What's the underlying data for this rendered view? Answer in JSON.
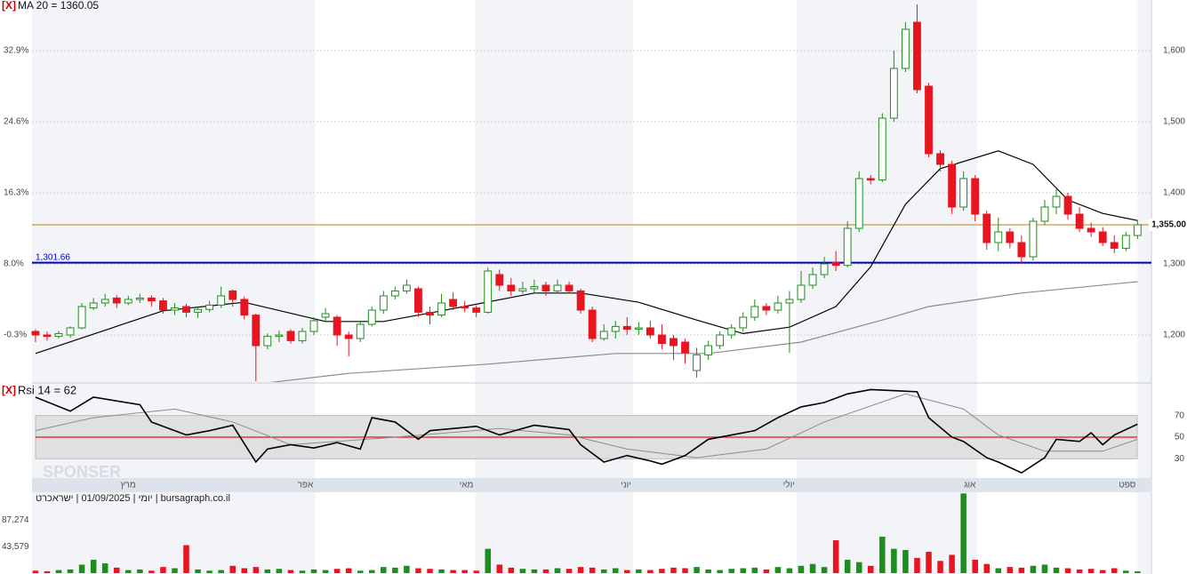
{
  "chart_data": {
    "type": "candlestick",
    "close_mark": "[X]",
    "ma_label": "MA 20 = 1360.05",
    "footer": "יומי | 01/09/2025 | ישראכרט | bursagraph.co.il",
    "watermark": "SPONSER",
    "xlim": [
      -0.3,
      96.2
    ],
    "xticks": [
      {
        "value": 8.8,
        "label": "מרץ"
      },
      {
        "value": 24.1,
        "label": "אפר"
      },
      {
        "value": 37.9,
        "label": "מאי"
      },
      {
        "value": 51.5,
        "label": "יוני"
      },
      {
        "value": 65.6,
        "label": "יולי"
      },
      {
        "value": 81.2,
        "label": "אוג"
      },
      {
        "value": 95,
        "label": "ספט"
      }
    ],
    "ylim": [
      1133.75,
      1671.25
    ],
    "yticks": [
      {
        "value": 1600,
        "label": "1,600"
      },
      {
        "value": 1500,
        "label": "1,500"
      },
      {
        "value": 1400,
        "label": "1,400"
      },
      {
        "value": 1300,
        "label": "1,300"
      },
      {
        "value": 1200,
        "label": "1,200"
      }
    ],
    "y2lim": [
      -5.8,
      38.81
    ],
    "y2ticks": [
      {
        "value": 32.9,
        "label": "32.9%"
      },
      {
        "value": 24.6,
        "label": "24.6%"
      },
      {
        "value": 16.3,
        "label": "16.3%"
      },
      {
        "value": 8.0,
        "label": "8.0%"
      },
      {
        "value": -0.3,
        "label": "-0.3%"
      }
    ],
    "grid": true,
    "up_color": "#1e8c1e",
    "down_color": "#e8141f",
    "candles": [
      [
        1205,
        1208,
        1190,
        1200
      ],
      [
        1200,
        1205,
        1192,
        1198
      ],
      [
        1198,
        1206,
        1195,
        1202
      ],
      [
        1200,
        1212,
        1196,
        1210
      ],
      [
        1210,
        1245,
        1208,
        1240
      ],
      [
        1238,
        1252,
        1235,
        1245
      ],
      [
        1245,
        1258,
        1240,
        1250
      ],
      [
        1252,
        1256,
        1238,
        1245
      ],
      [
        1245,
        1255,
        1242,
        1250
      ],
      [
        1250,
        1258,
        1245,
        1252
      ],
      [
        1252,
        1256,
        1240,
        1248
      ],
      [
        1248,
        1252,
        1230,
        1235
      ],
      [
        1235,
        1245,
        1228,
        1238
      ],
      [
        1240,
        1244,
        1225,
        1232
      ],
      [
        1232,
        1240,
        1224,
        1236
      ],
      [
        1236,
        1248,
        1232,
        1242
      ],
      [
        1242,
        1268,
        1238,
        1255
      ],
      [
        1262,
        1264,
        1240,
        1250
      ],
      [
        1250,
        1254,
        1222,
        1228
      ],
      [
        1228,
        1230,
        1135,
        1185
      ],
      [
        1185,
        1202,
        1180,
        1198
      ],
      [
        1198,
        1206,
        1190,
        1200
      ],
      [
        1205,
        1208,
        1188,
        1192
      ],
      [
        1192,
        1210,
        1188,
        1205
      ],
      [
        1205,
        1225,
        1200,
        1220
      ],
      [
        1225,
        1238,
        1218,
        1230
      ],
      [
        1225,
        1228,
        1185,
        1200
      ],
      [
        1200,
        1205,
        1170,
        1195
      ],
      [
        1195,
        1220,
        1190,
        1215
      ],
      [
        1215,
        1240,
        1212,
        1235
      ],
      [
        1235,
        1262,
        1230,
        1255
      ],
      [
        1255,
        1268,
        1250,
        1262
      ],
      [
        1262,
        1278,
        1258,
        1270
      ],
      [
        1265,
        1268,
        1225,
        1232
      ],
      [
        1232,
        1240,
        1215,
        1228
      ],
      [
        1228,
        1258,
        1225,
        1245
      ],
      [
        1250,
        1260,
        1235,
        1240
      ],
      [
        1240,
        1248,
        1232,
        1238
      ],
      [
        1238,
        1242,
        1225,
        1232
      ],
      [
        1232,
        1295,
        1230,
        1290
      ],
      [
        1285,
        1292,
        1262,
        1270
      ],
      [
        1270,
        1280,
        1255,
        1262
      ],
      [
        1262,
        1275,
        1258,
        1265
      ],
      [
        1265,
        1278,
        1260,
        1268
      ],
      [
        1270,
        1275,
        1255,
        1262
      ],
      [
        1262,
        1278,
        1260,
        1270
      ],
      [
        1270,
        1275,
        1258,
        1262
      ],
      [
        1262,
        1265,
        1230,
        1235
      ],
      [
        1235,
        1240,
        1190,
        1195
      ],
      [
        1195,
        1215,
        1192,
        1205
      ],
      [
        1205,
        1220,
        1195,
        1212
      ],
      [
        1212,
        1225,
        1200,
        1208
      ],
      [
        1208,
        1218,
        1200,
        1210
      ],
      [
        1210,
        1220,
        1195,
        1200
      ],
      [
        1200,
        1215,
        1180,
        1188
      ],
      [
        1195,
        1200,
        1165,
        1185
      ],
      [
        1190,
        1195,
        1160,
        1175
      ],
      [
        1150,
        1182,
        1140,
        1172
      ],
      [
        1172,
        1192,
        1165,
        1185
      ],
      [
        1185,
        1205,
        1180,
        1200
      ],
      [
        1200,
        1215,
        1195,
        1210
      ],
      [
        1210,
        1232,
        1205,
        1225
      ],
      [
        1225,
        1250,
        1220,
        1240
      ],
      [
        1240,
        1245,
        1228,
        1235
      ],
      [
        1235,
        1255,
        1230,
        1245
      ],
      [
        1245,
        1262,
        1175,
        1250
      ],
      [
        1250,
        1290,
        1245,
        1270
      ],
      [
        1270,
        1295,
        1265,
        1285
      ],
      [
        1285,
        1310,
        1280,
        1300
      ],
      [
        1302,
        1318,
        1290,
        1298
      ],
      [
        1298,
        1360,
        1295,
        1350
      ],
      [
        1350,
        1430,
        1345,
        1420
      ],
      [
        1420,
        1425,
        1412,
        1418
      ],
      [
        1418,
        1512,
        1415,
        1505
      ],
      [
        1505,
        1600,
        1500,
        1575
      ],
      [
        1575,
        1640,
        1570,
        1630
      ],
      [
        1640,
        1665,
        1540,
        1545
      ],
      [
        1550,
        1555,
        1450,
        1455
      ],
      [
        1455,
        1460,
        1430,
        1440
      ],
      [
        1440,
        1445,
        1370,
        1380
      ],
      [
        1380,
        1430,
        1375,
        1420
      ],
      [
        1420,
        1425,
        1360,
        1370
      ],
      [
        1370,
        1375,
        1320,
        1330
      ],
      [
        1330,
        1365,
        1318,
        1345
      ],
      [
        1345,
        1350,
        1322,
        1330
      ],
      [
        1330,
        1340,
        1300,
        1310
      ],
      [
        1310,
        1365,
        1305,
        1360
      ],
      [
        1360,
        1390,
        1355,
        1380
      ],
      [
        1380,
        1405,
        1370,
        1395
      ],
      [
        1395,
        1400,
        1362,
        1370
      ],
      [
        1370,
        1380,
        1345,
        1350
      ],
      [
        1350,
        1358,
        1338,
        1345
      ],
      [
        1345,
        1352,
        1325,
        1330
      ],
      [
        1330,
        1340,
        1315,
        1322
      ],
      [
        1322,
        1345,
        1318,
        1340
      ],
      [
        1340,
        1362,
        1335,
        1355
      ]
    ],
    "ma_lines": [
      {
        "color": "#000000",
        "x": [
          0,
          11,
          18,
          25,
          30,
          35,
          43,
          47,
          52,
          57,
          61,
          65,
          69,
          72,
          75,
          78,
          83,
          86,
          89,
          92,
          95
        ],
        "values": [
          1174,
          1234,
          1246,
          1219,
          1219,
          1234,
          1259,
          1259,
          1246,
          1221,
          1202,
          1211,
          1240,
          1296,
          1384,
          1434,
          1459,
          1440,
          1390,
          1371,
          1361
        ]
      },
      {
        "color": "#8c8c8c",
        "x": [
          17,
          27,
          39,
          50,
          58,
          66,
          73,
          77,
          85,
          95
        ],
        "values": [
          1127,
          1146,
          1159,
          1174,
          1174,
          1190,
          1221,
          1240,
          1259,
          1275
        ]
      }
    ],
    "levels": [
      {
        "value": 1301.66,
        "label": "1,301.66",
        "color": "#0000cc"
      },
      {
        "value": 1355,
        "label": "1,355.00",
        "color": "#b8860b"
      }
    ],
    "rsi": {
      "label": "Rsi 14 = 62",
      "ylim": [
        13,
        96
      ],
      "yticks": [
        70,
        50,
        30
      ],
      "color": "#000000",
      "x": [
        0,
        3,
        5,
        9,
        10,
        13,
        15,
        17,
        19,
        20,
        22,
        24,
        26,
        28,
        29,
        31,
        33,
        34,
        38,
        40,
        43,
        46,
        47,
        49,
        51,
        53,
        54,
        56,
        58,
        60,
        62,
        64,
        66,
        68,
        70,
        72,
        76,
        77,
        79,
        80,
        82,
        83,
        85,
        87,
        88,
        90,
        91,
        92,
        93,
        95
      ],
      "values": [
        87,
        74,
        87,
        80,
        64,
        52,
        56,
        61,
        27,
        39,
        43,
        40,
        45,
        39,
        68,
        64,
        48,
        56,
        60,
        52,
        61,
        57,
        43,
        27,
        33,
        28,
        25,
        33,
        48,
        52,
        56,
        68,
        78,
        82,
        90,
        94,
        92,
        68,
        50,
        46,
        31,
        27,
        17,
        31,
        48,
        46,
        54,
        43,
        52,
        62
      ],
      "signal": {
        "color": "#8c8c8c",
        "x": [
          0,
          5,
          12,
          17,
          22,
          31,
          40,
          46,
          51,
          57,
          63,
          68,
          75,
          80,
          83,
          87,
          92,
          95
        ],
        "values": [
          56,
          68,
          76,
          64,
          43,
          50,
          58,
          52,
          39,
          31,
          39,
          64,
          90,
          76,
          52,
          37,
          37,
          48
        ]
      }
    },
    "volume": {
      "ylim": [
        0,
        133000
      ],
      "yticks": [
        {
          "value": 87274,
          "label": "87,274"
        },
        {
          "value": 43579,
          "label": "43,579"
        }
      ],
      "values": [
        4000,
        3000,
        5000,
        6000,
        14000,
        22000,
        16000,
        9000,
        5000,
        6000,
        4000,
        10000,
        8000,
        46000,
        6000,
        4000,
        5000,
        12000,
        8000,
        10000,
        6000,
        7000,
        5000,
        4000,
        6000,
        5000,
        7000,
        8000,
        4000,
        5000,
        10000,
        9000,
        12000,
        8000,
        7000,
        6000,
        5000,
        5000,
        4000,
        40000,
        14000,
        9000,
        7000,
        6000,
        6000,
        8000,
        7000,
        10000,
        9000,
        6000,
        8000,
        5000,
        6000,
        5000,
        7000,
        9000,
        8000,
        10000,
        6000,
        5000,
        7000,
        8000,
        9000,
        6000,
        10000,
        8000,
        12000,
        15000,
        10000,
        54000,
        22000,
        18000,
        12000,
        60000,
        40000,
        38000,
        25000,
        35000,
        20000,
        30000,
        131000,
        22000,
        15000,
        8000,
        10000,
        9000,
        12000,
        14000,
        9000,
        8000,
        6000,
        7000,
        5000,
        8000,
        4000,
        3000
      ]
    }
  }
}
